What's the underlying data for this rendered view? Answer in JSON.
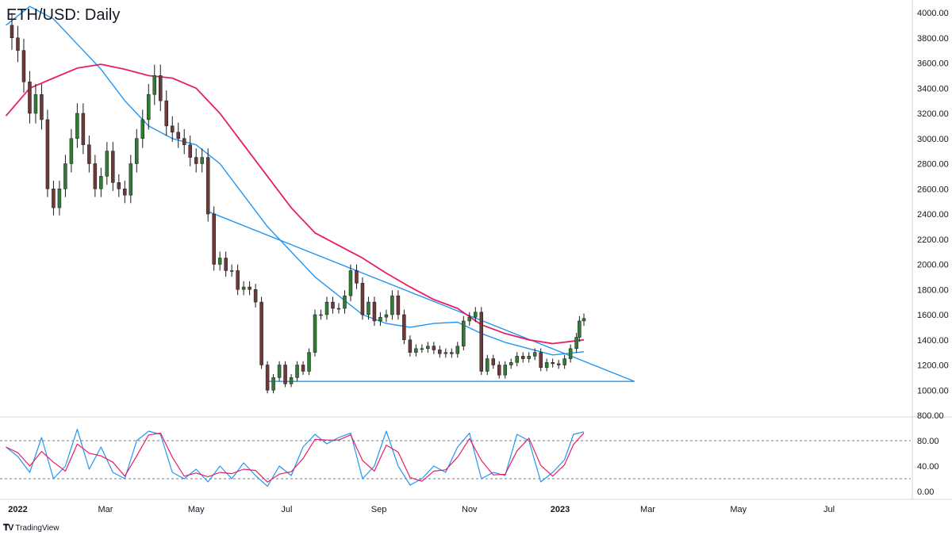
{
  "title": "ETH/USD: Daily",
  "brand": "TradingView",
  "brand_logo": "tradingview-logo-icon",
  "colors": {
    "up": "#2e7d32",
    "down": "#6d3a3a",
    "wick": "#1a1a1a",
    "ma_fast": "#2196f3",
    "ma_slow": "#e91e63",
    "trendline": "#2196f3",
    "stoch_k": "#2196f3",
    "stoch_d": "#e91e63",
    "grid_sep": "#d1d4dc"
  },
  "chart_data": [
    {
      "type": "candlestick",
      "title": "ETH/USD: Daily",
      "ylim": [
        800,
        4100
      ],
      "yticks": [
        "4000.00",
        "3800.00",
        "3600.00",
        "3400.00",
        "3200.00",
        "3000.00",
        "2800.00",
        "2600.00",
        "2400.00",
        "2200.00",
        "2000.00",
        "1800.00",
        "1600.00",
        "1400.00",
        "1200.00",
        "1000.00",
        "800.00"
      ],
      "xticks": [
        {
          "label": "2022",
          "bold": true,
          "x": "2022-01-01"
        },
        {
          "label": "Mar",
          "bold": false,
          "x": "2022-03-01"
        },
        {
          "label": "May",
          "bold": false,
          "x": "2022-05-01"
        },
        {
          "label": "Jul",
          "bold": false,
          "x": "2022-07-01"
        },
        {
          "label": "Sep",
          "bold": false,
          "x": "2022-09-01"
        },
        {
          "label": "Nov",
          "bold": false,
          "x": "2022-11-01"
        },
        {
          "label": "2023",
          "bold": true,
          "x": "2023-01-01"
        },
        {
          "label": "Mar",
          "bold": false,
          "x": "2023-03-01"
        },
        {
          "label": "May",
          "bold": false,
          "x": "2023-05-01"
        },
        {
          "label": "Jul",
          "bold": false,
          "x": "2023-07-01"
        }
      ],
      "closes": [
        {
          "x": "2021-12-24",
          "y": 3900
        },
        {
          "x": "2021-12-28",
          "y": 3800
        },
        {
          "x": "2022-01-01",
          "y": 3700
        },
        {
          "x": "2022-01-05",
          "y": 3450
        },
        {
          "x": "2022-01-09",
          "y": 3200
        },
        {
          "x": "2022-01-13",
          "y": 3350
        },
        {
          "x": "2022-01-17",
          "y": 3150
        },
        {
          "x": "2022-01-21",
          "y": 2600
        },
        {
          "x": "2022-01-25",
          "y": 2450
        },
        {
          "x": "2022-01-29",
          "y": 2600
        },
        {
          "x": "2022-02-02",
          "y": 2800
        },
        {
          "x": "2022-02-06",
          "y": 3000
        },
        {
          "x": "2022-02-10",
          "y": 3200
        },
        {
          "x": "2022-02-14",
          "y": 2950
        },
        {
          "x": "2022-02-18",
          "y": 2800
        },
        {
          "x": "2022-02-22",
          "y": 2600
        },
        {
          "x": "2022-02-26",
          "y": 2700
        },
        {
          "x": "2022-03-02",
          "y": 2900
        },
        {
          "x": "2022-03-06",
          "y": 2650
        },
        {
          "x": "2022-03-10",
          "y": 2600
        },
        {
          "x": "2022-03-14",
          "y": 2550
        },
        {
          "x": "2022-03-18",
          "y": 2800
        },
        {
          "x": "2022-03-22",
          "y": 3000
        },
        {
          "x": "2022-03-26",
          "y": 3150
        },
        {
          "x": "2022-03-30",
          "y": 3350
        },
        {
          "x": "2022-04-03",
          "y": 3500
        },
        {
          "x": "2022-04-07",
          "y": 3300
        },
        {
          "x": "2022-04-11",
          "y": 3100
        },
        {
          "x": "2022-04-15",
          "y": 3050
        },
        {
          "x": "2022-04-19",
          "y": 3000
        },
        {
          "x": "2022-04-23",
          "y": 2950
        },
        {
          "x": "2022-04-27",
          "y": 2850
        },
        {
          "x": "2022-05-01",
          "y": 2800
        },
        {
          "x": "2022-05-05",
          "y": 2850
        },
        {
          "x": "2022-05-09",
          "y": 2400
        },
        {
          "x": "2022-05-13",
          "y": 2000
        },
        {
          "x": "2022-05-17",
          "y": 2050
        },
        {
          "x": "2022-05-21",
          "y": 1950
        },
        {
          "x": "2022-05-25",
          "y": 1950
        },
        {
          "x": "2022-05-29",
          "y": 1800
        },
        {
          "x": "2022-06-02",
          "y": 1820
        },
        {
          "x": "2022-06-06",
          "y": 1800
        },
        {
          "x": "2022-06-10",
          "y": 1700
        },
        {
          "x": "2022-06-14",
          "y": 1200
        },
        {
          "x": "2022-06-18",
          "y": 1000
        },
        {
          "x": "2022-06-22",
          "y": 1100
        },
        {
          "x": "2022-06-26",
          "y": 1200
        },
        {
          "x": "2022-06-30",
          "y": 1050
        },
        {
          "x": "2022-07-04",
          "y": 1100
        },
        {
          "x": "2022-07-08",
          "y": 1200
        },
        {
          "x": "2022-07-12",
          "y": 1150
        },
        {
          "x": "2022-07-16",
          "y": 1300
        },
        {
          "x": "2022-07-20",
          "y": 1600
        },
        {
          "x": "2022-07-24",
          "y": 1600
        },
        {
          "x": "2022-07-28",
          "y": 1700
        },
        {
          "x": "2022-08-01",
          "y": 1650
        },
        {
          "x": "2022-08-05",
          "y": 1650
        },
        {
          "x": "2022-08-09",
          "y": 1750
        },
        {
          "x": "2022-08-13",
          "y": 1950
        },
        {
          "x": "2022-08-17",
          "y": 1850
        },
        {
          "x": "2022-08-21",
          "y": 1600
        },
        {
          "x": "2022-08-25",
          "y": 1700
        },
        {
          "x": "2022-08-29",
          "y": 1550
        },
        {
          "x": "2022-09-02",
          "y": 1580
        },
        {
          "x": "2022-09-06",
          "y": 1600
        },
        {
          "x": "2022-09-10",
          "y": 1750
        },
        {
          "x": "2022-09-14",
          "y": 1600
        },
        {
          "x": "2022-09-18",
          "y": 1400
        },
        {
          "x": "2022-09-22",
          "y": 1300
        },
        {
          "x": "2022-09-26",
          "y": 1330
        },
        {
          "x": "2022-09-30",
          "y": 1330
        },
        {
          "x": "2022-10-04",
          "y": 1350
        },
        {
          "x": "2022-10-08",
          "y": 1320
        },
        {
          "x": "2022-10-12",
          "y": 1290
        },
        {
          "x": "2022-10-16",
          "y": 1300
        },
        {
          "x": "2022-10-20",
          "y": 1290
        },
        {
          "x": "2022-10-24",
          "y": 1350
        },
        {
          "x": "2022-10-28",
          "y": 1550
        },
        {
          "x": "2022-11-01",
          "y": 1580
        },
        {
          "x": "2022-11-05",
          "y": 1620
        },
        {
          "x": "2022-11-09",
          "y": 1150
        },
        {
          "x": "2022-11-13",
          "y": 1250
        },
        {
          "x": "2022-11-17",
          "y": 1200
        },
        {
          "x": "2022-11-21",
          "y": 1120
        },
        {
          "x": "2022-11-25",
          "y": 1200
        },
        {
          "x": "2022-11-29",
          "y": 1220
        },
        {
          "x": "2022-12-03",
          "y": 1270
        },
        {
          "x": "2022-12-07",
          "y": 1250
        },
        {
          "x": "2022-12-11",
          "y": 1270
        },
        {
          "x": "2022-12-15",
          "y": 1300
        },
        {
          "x": "2022-12-19",
          "y": 1180
        },
        {
          "x": "2022-12-23",
          "y": 1220
        },
        {
          "x": "2022-12-27",
          "y": 1210
        },
        {
          "x": "2022-12-31",
          "y": 1200
        },
        {
          "x": "2023-01-04",
          "y": 1250
        },
        {
          "x": "2023-01-08",
          "y": 1330
        },
        {
          "x": "2023-01-12",
          "y": 1420
        },
        {
          "x": "2023-01-14",
          "y": 1550
        },
        {
          "x": "2023-01-17",
          "y": 1570
        }
      ],
      "ma_fast": [
        {
          "x": "2021-12-24",
          "y": 3900
        },
        {
          "x": "2022-01-09",
          "y": 4050
        },
        {
          "x": "2022-01-25",
          "y": 3950
        },
        {
          "x": "2022-02-10",
          "y": 3750
        },
        {
          "x": "2022-02-26",
          "y": 3550
        },
        {
          "x": "2022-03-14",
          "y": 3300
        },
        {
          "x": "2022-03-30",
          "y": 3100
        },
        {
          "x": "2022-04-15",
          "y": 3000
        },
        {
          "x": "2022-05-01",
          "y": 2950
        },
        {
          "x": "2022-05-17",
          "y": 2800
        },
        {
          "x": "2022-06-02",
          "y": 2550
        },
        {
          "x": "2022-06-18",
          "y": 2300
        },
        {
          "x": "2022-07-04",
          "y": 2100
        },
        {
          "x": "2022-07-20",
          "y": 1900
        },
        {
          "x": "2022-08-05",
          "y": 1750
        },
        {
          "x": "2022-08-21",
          "y": 1600
        },
        {
          "x": "2022-09-06",
          "y": 1530
        },
        {
          "x": "2022-09-22",
          "y": 1500
        },
        {
          "x": "2022-10-08",
          "y": 1530
        },
        {
          "x": "2022-10-24",
          "y": 1540
        },
        {
          "x": "2022-11-09",
          "y": 1450
        },
        {
          "x": "2022-11-25",
          "y": 1380
        },
        {
          "x": "2022-12-11",
          "y": 1330
        },
        {
          "x": "2022-12-27",
          "y": 1280
        },
        {
          "x": "2023-01-17",
          "y": 1305
        }
      ],
      "ma_slow": [
        {
          "x": "2021-12-24",
          "y": 3180
        },
        {
          "x": "2022-01-09",
          "y": 3400
        },
        {
          "x": "2022-01-25",
          "y": 3480
        },
        {
          "x": "2022-02-10",
          "y": 3560
        },
        {
          "x": "2022-02-26",
          "y": 3590
        },
        {
          "x": "2022-03-14",
          "y": 3550
        },
        {
          "x": "2022-03-30",
          "y": 3500
        },
        {
          "x": "2022-04-15",
          "y": 3480
        },
        {
          "x": "2022-05-01",
          "y": 3400
        },
        {
          "x": "2022-05-17",
          "y": 3200
        },
        {
          "x": "2022-06-02",
          "y": 2950
        },
        {
          "x": "2022-06-18",
          "y": 2700
        },
        {
          "x": "2022-07-04",
          "y": 2450
        },
        {
          "x": "2022-07-20",
          "y": 2250
        },
        {
          "x": "2022-08-05",
          "y": 2150
        },
        {
          "x": "2022-08-21",
          "y": 2050
        },
        {
          "x": "2022-09-06",
          "y": 1930
        },
        {
          "x": "2022-09-22",
          "y": 1820
        },
        {
          "x": "2022-10-08",
          "y": 1720
        },
        {
          "x": "2022-10-24",
          "y": 1650
        },
        {
          "x": "2022-11-09",
          "y": 1520
        },
        {
          "x": "2022-11-25",
          "y": 1450
        },
        {
          "x": "2022-12-11",
          "y": 1400
        },
        {
          "x": "2022-12-27",
          "y": 1370
        },
        {
          "x": "2023-01-17",
          "y": 1400
        }
      ],
      "trendlines": [
        {
          "from": {
            "x": "2022-05-09",
            "y": 2420
          },
          "to": {
            "x": "2023-02-20",
            "y": 1070
          }
        },
        {
          "from": {
            "x": "2022-06-18",
            "y": 1070
          },
          "to": {
            "x": "2023-02-20",
            "y": 1070
          }
        }
      ]
    },
    {
      "type": "line",
      "title": "",
      "ylim": [
        0,
        100
      ],
      "yticks": [
        "80.00",
        "40.00",
        "0.00"
      ],
      "levels": [
        80,
        20
      ],
      "k_series": [
        {
          "x": "2021-12-24",
          "y": 70
        },
        {
          "x": "2022-01-01",
          "y": 55
        },
        {
          "x": "2022-01-09",
          "y": 30
        },
        {
          "x": "2022-01-17",
          "y": 85
        },
        {
          "x": "2022-01-25",
          "y": 20
        },
        {
          "x": "2022-02-02",
          "y": 40
        },
        {
          "x": "2022-02-10",
          "y": 98
        },
        {
          "x": "2022-02-18",
          "y": 35
        },
        {
          "x": "2022-02-26",
          "y": 70
        },
        {
          "x": "2022-03-06",
          "y": 30
        },
        {
          "x": "2022-03-14",
          "y": 20
        },
        {
          "x": "2022-03-22",
          "y": 80
        },
        {
          "x": "2022-03-30",
          "y": 95
        },
        {
          "x": "2022-04-07",
          "y": 90
        },
        {
          "x": "2022-04-15",
          "y": 30
        },
        {
          "x": "2022-04-23",
          "y": 20
        },
        {
          "x": "2022-05-01",
          "y": 35
        },
        {
          "x": "2022-05-09",
          "y": 15
        },
        {
          "x": "2022-05-17",
          "y": 40
        },
        {
          "x": "2022-05-25",
          "y": 20
        },
        {
          "x": "2022-06-02",
          "y": 45
        },
        {
          "x": "2022-06-10",
          "y": 25
        },
        {
          "x": "2022-06-18",
          "y": 8
        },
        {
          "x": "2022-06-26",
          "y": 40
        },
        {
          "x": "2022-07-04",
          "y": 25
        },
        {
          "x": "2022-07-12",
          "y": 70
        },
        {
          "x": "2022-07-20",
          "y": 90
        },
        {
          "x": "2022-07-28",
          "y": 75
        },
        {
          "x": "2022-08-05",
          "y": 85
        },
        {
          "x": "2022-08-13",
          "y": 92
        },
        {
          "x": "2022-08-21",
          "y": 20
        },
        {
          "x": "2022-08-29",
          "y": 40
        },
        {
          "x": "2022-09-06",
          "y": 95
        },
        {
          "x": "2022-09-14",
          "y": 40
        },
        {
          "x": "2022-09-22",
          "y": 10
        },
        {
          "x": "2022-09-30",
          "y": 20
        },
        {
          "x": "2022-10-08",
          "y": 40
        },
        {
          "x": "2022-10-16",
          "y": 30
        },
        {
          "x": "2022-10-24",
          "y": 70
        },
        {
          "x": "2022-11-01",
          "y": 92
        },
        {
          "x": "2022-11-09",
          "y": 20
        },
        {
          "x": "2022-11-17",
          "y": 30
        },
        {
          "x": "2022-11-25",
          "y": 25
        },
        {
          "x": "2022-12-03",
          "y": 90
        },
        {
          "x": "2022-12-11",
          "y": 80
        },
        {
          "x": "2022-12-19",
          "y": 15
        },
        {
          "x": "2022-12-27",
          "y": 30
        },
        {
          "x": "2023-01-04",
          "y": 50
        },
        {
          "x": "2023-01-10",
          "y": 90
        },
        {
          "x": "2023-01-17",
          "y": 94
        }
      ]
    }
  ]
}
